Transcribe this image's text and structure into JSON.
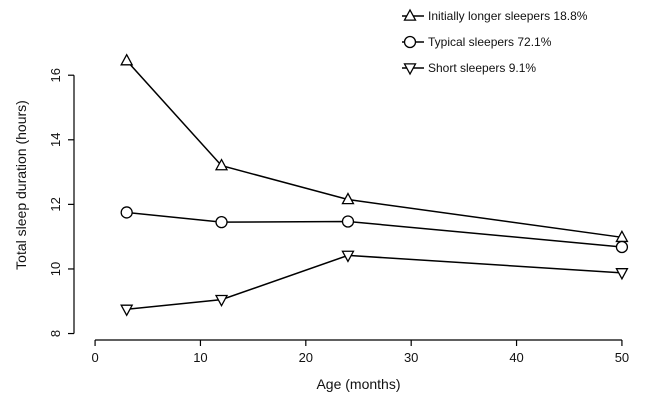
{
  "chart_data": {
    "type": "line",
    "xlabel": "Age (months)",
    "ylabel": "Total sleep duration (hours)",
    "xlim": [
      -2,
      52
    ],
    "ylim": [
      7.8,
      17.4
    ],
    "xticks": [
      0,
      10,
      20,
      30,
      40,
      50
    ],
    "yticks": [
      8,
      10,
      12,
      14,
      16
    ],
    "grid": false,
    "legend_position": "top-right",
    "series": [
      {
        "name": "Initially longer sleepers 18.8%",
        "marker": "triangle-up",
        "x": [
          3,
          12,
          24,
          50
        ],
        "y": [
          16.45,
          13.2,
          12.15,
          10.98
        ]
      },
      {
        "name": "Typical sleepers 72.1%",
        "marker": "circle",
        "x": [
          3,
          12,
          24,
          50
        ],
        "y": [
          11.75,
          11.45,
          11.47,
          10.68
        ]
      },
      {
        "name": "Short sleepers 9.1%",
        "marker": "triangle-down",
        "x": [
          3,
          12,
          24,
          50
        ],
        "y": [
          8.75,
          9.05,
          10.42,
          9.88
        ]
      }
    ]
  }
}
